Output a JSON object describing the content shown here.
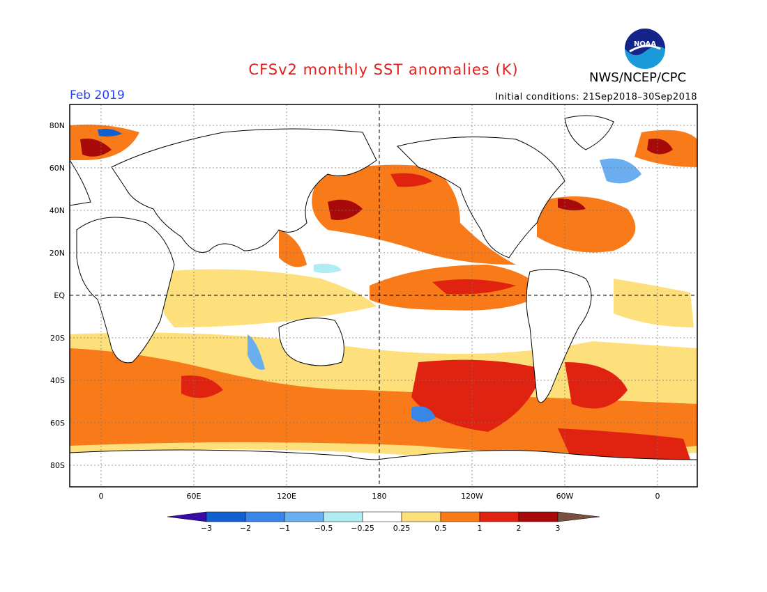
{
  "header": {
    "title": "CFSv2 monthly SST anomalies (K)",
    "valid_month": "Feb 2019",
    "initial_conditions": "Initial conditions: 21Sep2018–30Sep2018",
    "agency": "NWS/NCEP/CPC",
    "logo_text": "NOAA"
  },
  "map": {
    "lat_labels": [
      "80N",
      "60N",
      "40N",
      "20N",
      "EQ",
      "20S",
      "40S",
      "60S",
      "80S"
    ],
    "lon_labels": [
      "0",
      "60E",
      "120E",
      "180",
      "120W",
      "60W",
      "0"
    ]
  },
  "colorbar": {
    "labels": [
      "−3",
      "−2",
      "−1",
      "−0.5",
      "−0.25",
      "0.25",
      "0.5",
      "1",
      "2",
      "3"
    ],
    "colors": [
      "#3a0aa8",
      "#1060d0",
      "#3a86e8",
      "#6aaef0",
      "#b0ecf4",
      "#ffffff",
      "#fde07c",
      "#f87a18",
      "#e02210",
      "#a80a0a",
      "#7a5040"
    ]
  }
}
